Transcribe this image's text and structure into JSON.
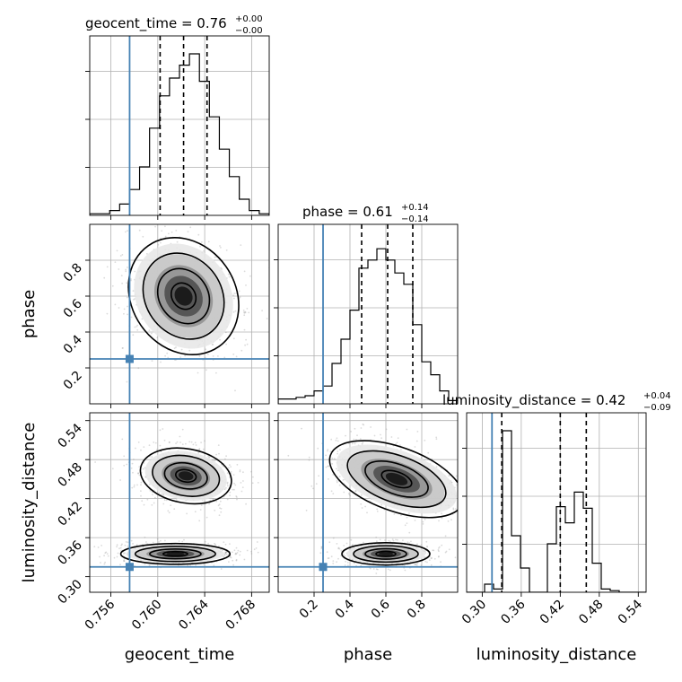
{
  "chart_data": {
    "type": "scatter",
    "style": "corner-plot",
    "parameters": [
      "geocent_time",
      "phase",
      "luminosity_distance"
    ],
    "axis_labels": {
      "geocent_time": "geocent_time",
      "phase": "phase",
      "luminosity_distance": "luminosity_distance"
    },
    "ranges": {
      "geocent_time": [
        0.7542,
        0.7695
      ],
      "phase": [
        0.0,
        1.0
      ],
      "luminosity_distance": [
        0.276,
        0.552
      ]
    },
    "ticks": {
      "geocent_time": [
        {
          "value": 0.756,
          "label": "0.756"
        },
        {
          "value": 0.76,
          "label": "0.760"
        },
        {
          "value": 0.764,
          "label": "0.764"
        },
        {
          "value": 0.768,
          "label": "0.768"
        }
      ],
      "phase": [
        {
          "value": 0.2,
          "label": "0.2"
        },
        {
          "value": 0.4,
          "label": "0.4"
        },
        {
          "value": 0.6,
          "label": "0.6"
        },
        {
          "value": 0.8,
          "label": "0.8"
        }
      ],
      "luminosity_distance": [
        {
          "value": 0.3,
          "label": "0.30"
        },
        {
          "value": 0.36,
          "label": "0.36"
        },
        {
          "value": 0.42,
          "label": "0.42"
        },
        {
          "value": 0.48,
          "label": "0.48"
        },
        {
          "value": 0.54,
          "label": "0.54"
        }
      ]
    },
    "truths": {
      "geocent_time": 0.7576,
      "phase": 0.25,
      "luminosity_distance": 0.315,
      "color": "#4682b4"
    },
    "titles": {
      "geocent_time": {
        "name": "geocent_time",
        "median": "0.76",
        "plus": "+0.00",
        "minus": "−0.00"
      },
      "phase": {
        "name": "phase",
        "median": "0.61",
        "plus": "+0.14",
        "minus": "−0.14"
      },
      "luminosity_distance": {
        "name": "luminosity_distance",
        "median": "0.42",
        "plus": "+0.04",
        "minus": "−0.09"
      }
    },
    "quantiles": {
      "geocent_time": [
        0.7602,
        0.7622,
        0.7642
      ],
      "phase": [
        0.465,
        0.61,
        0.75
      ],
      "luminosity_distance": [
        0.33,
        0.42,
        0.46
      ]
    },
    "histograms": {
      "geocent_time": {
        "bin_edges": [
          0.7542,
          0.75505,
          0.7559,
          0.75675,
          0.7576,
          0.75845,
          0.7593,
          0.76015,
          0.761,
          0.76185,
          0.7627,
          0.76355,
          0.7644,
          0.76525,
          0.7661,
          0.76695,
          0.7678,
          0.76865,
          0.7695
        ],
        "counts": [
          0.01,
          0.01,
          0.03,
          0.07,
          0.16,
          0.3,
          0.54,
          0.74,
          0.85,
          0.93,
          1.0,
          0.83,
          0.61,
          0.41,
          0.24,
          0.1,
          0.03,
          0.01
        ]
      },
      "phase": {
        "bin_edges": [
          0.0,
          0.05,
          0.1,
          0.15,
          0.2,
          0.25,
          0.3,
          0.35,
          0.4,
          0.45,
          0.5,
          0.55,
          0.6,
          0.65,
          0.7,
          0.75,
          0.8,
          0.85,
          0.9,
          0.95,
          1.0
        ],
        "counts": [
          0.03,
          0.03,
          0.04,
          0.05,
          0.08,
          0.11,
          0.25,
          0.4,
          0.58,
          0.84,
          0.89,
          0.96,
          0.89,
          0.81,
          0.74,
          0.49,
          0.26,
          0.18,
          0.08,
          0.02
        ]
      },
      "luminosity_distance": {
        "bin_edges": [
          0.276,
          0.2898,
          0.3036,
          0.3174,
          0.3312,
          0.345,
          0.3588,
          0.3726,
          0.3864,
          0.4002,
          0.414,
          0.4278,
          0.4416,
          0.4554,
          0.4692,
          0.483,
          0.4968,
          0.5106,
          0.5244,
          0.5382,
          0.552
        ],
        "counts": [
          0.0,
          0.0,
          0.05,
          0.02,
          1.0,
          0.35,
          0.15,
          0.0,
          0.0,
          0.3,
          0.53,
          0.43,
          0.62,
          0.52,
          0.18,
          0.02,
          0.01,
          0.0,
          0.0,
          0.0
        ]
      }
    },
    "contour_blobs": {
      "phase_vs_geocent_time": [
        {
          "center": [
            0.7622,
            0.6
          ],
          "sigma": [
            0.0018,
            0.14
          ],
          "tilt_deg": 35
        }
      ],
      "luminosity_distance_vs_geocent_time": [
        {
          "center": [
            0.7624,
            0.455
          ],
          "sigma": [
            0.0016,
            0.017
          ],
          "tilt_deg": -10
        },
        {
          "center": [
            0.7615,
            0.335
          ],
          "sigma": [
            0.0019,
            0.0065
          ],
          "tilt_deg": 0
        }
      ],
      "luminosity_distance_vs_phase": [
        {
          "center": [
            0.66,
            0.45
          ],
          "sigma": [
            0.16,
            0.02
          ],
          "tilt_deg": -20
        },
        {
          "center": [
            0.6,
            0.335
          ],
          "sigma": [
            0.1,
            0.007
          ],
          "tilt_deg": 0
        }
      ]
    }
  }
}
